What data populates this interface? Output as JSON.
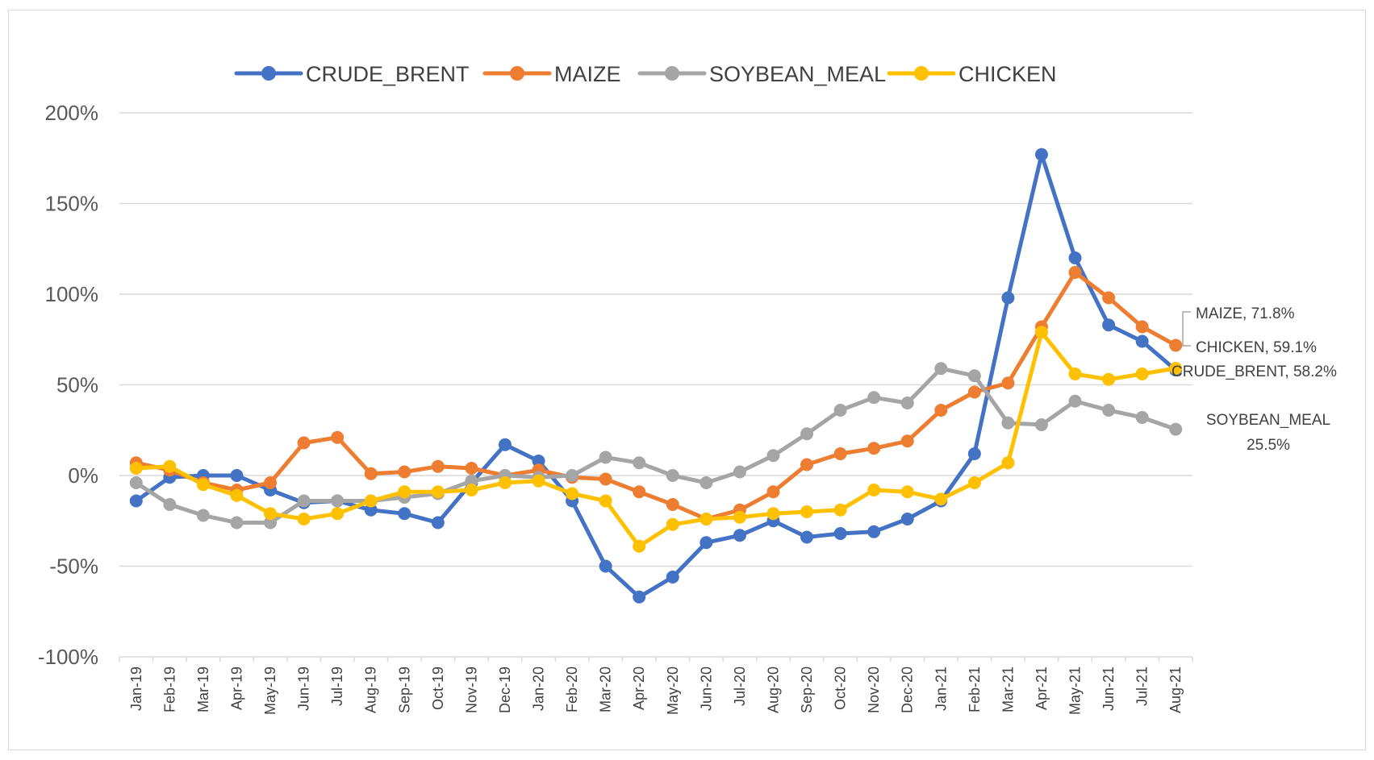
{
  "chart_data": {
    "type": "line",
    "title": "",
    "xlabel": "",
    "ylabel": "",
    "ylim": [
      -100,
      200
    ],
    "yticks": [
      "200%",
      "150%",
      "100%",
      "50%",
      "0%",
      "-50%",
      "-100%"
    ],
    "grid": "horizontal",
    "legend_position": "top",
    "categories": [
      "Jan-19",
      "Feb-19",
      "Mar-19",
      "Apr-19",
      "May-19",
      "Jun-19",
      "Jul-19",
      "Aug-19",
      "Sep-19",
      "Oct-19",
      "Nov-19",
      "Dec-19",
      "Jan-20",
      "Feb-20",
      "Mar-20",
      "Apr-20",
      "May-20",
      "Jun-20",
      "Jul-20",
      "Aug-20",
      "Sep-20",
      "Oct-20",
      "Nov-20",
      "Dec-20",
      "Jan-21",
      "Feb-21",
      "Mar-21",
      "Apr-21",
      "May-21",
      "Jun-21",
      "Jul-21",
      "Aug-21"
    ],
    "series": [
      {
        "name": "CRUDE_BRENT",
        "color": "#4472c4",
        "values": [
          -14,
          -1,
          0,
          0,
          -8,
          -15,
          -14,
          -19,
          -21,
          -26,
          -4,
          17,
          8,
          -14,
          -50,
          -67,
          -56,
          -37,
          -33,
          -25,
          -34,
          -32,
          -31,
          -24,
          -14,
          12,
          98,
          177,
          120,
          83,
          74,
          58.2
        ]
      },
      {
        "name": "MAIZE",
        "color": "#ed7d31",
        "values": [
          7,
          3,
          -4,
          -8,
          -4,
          18,
          21,
          1,
          2,
          5,
          4,
          0,
          3,
          -1,
          -2,
          -9,
          -16,
          -24,
          -19,
          -9,
          6,
          12,
          15,
          19,
          36,
          46,
          51,
          82,
          112,
          98,
          82,
          71.8
        ]
      },
      {
        "name": "SOYBEAN_MEAL",
        "color": "#a5a5a5",
        "values": [
          -4,
          -16,
          -22,
          -26,
          -26,
          -14,
          -14,
          -14,
          -12,
          -10,
          -3,
          0,
          -1,
          0,
          10,
          7,
          0,
          -4,
          2,
          11,
          23,
          36,
          43,
          40,
          59,
          55,
          29,
          28,
          41,
          36,
          32,
          25.5
        ]
      },
      {
        "name": "CHICKEN",
        "color": "#ffc000",
        "values": [
          4,
          5,
          -5,
          -11,
          -21,
          -24,
          -21,
          -14,
          -9,
          -9,
          -8,
          -4,
          -3,
          -10,
          -14,
          -39,
          -27,
          -24,
          -23,
          -21,
          -20,
          -19,
          -8,
          -9,
          -13,
          -4,
          7,
          79,
          56,
          53,
          56,
          59.1
        ]
      }
    ],
    "data_labels": [
      {
        "text": "MAIZE, 71.8%",
        "series": "MAIZE"
      },
      {
        "text": "CHICKEN, 59.1%",
        "series": "CHICKEN"
      },
      {
        "text": "CRUDE_BRENT, 58.2%",
        "series": "CRUDE_BRENT"
      },
      {
        "text": "SOYBEAN_MEAL",
        "text2": "25.5%",
        "series": "SOYBEAN_MEAL"
      }
    ]
  }
}
